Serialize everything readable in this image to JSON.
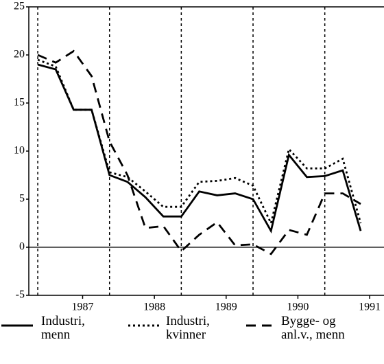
{
  "chart_data": {
    "type": "line",
    "x": [
      1986.875,
      1987.125,
      1987.375,
      1987.625,
      1987.875,
      1988.125,
      1988.375,
      1988.625,
      1988.875,
      1989.125,
      1989.375,
      1989.625,
      1989.875,
      1990.125,
      1990.375,
      1990.625,
      1990.875,
      1991.125,
      1991.375
    ],
    "series": [
      {
        "name": "Industri, menn",
        "color": "#000000",
        "dash": "solid",
        "values": [
          19,
          18.5,
          14.3,
          14.3,
          7.5,
          6.8,
          5.2,
          3.2,
          3.2,
          5.8,
          5.4,
          5.6,
          5.0,
          1.7,
          9.6,
          7.3,
          7.4,
          8.0,
          1.7
        ]
      },
      {
        "name": "Industri, kvinner",
        "color": "#000000",
        "dash": "dotted",
        "values": [
          19.5,
          18.8,
          14.3,
          14.3,
          7.8,
          7.3,
          5.8,
          4.2,
          4.2,
          6.8,
          6.9,
          7.2,
          6.4,
          2.5,
          10.2,
          8.2,
          8.2,
          9.2,
          2.5
        ]
      },
      {
        "name": "Bygge- og anl.v., menn",
        "color": "#000000",
        "dash": "dashed",
        "values": [
          20,
          19.2,
          20.4,
          17.8,
          11,
          7.5,
          2,
          2.2,
          -0.4,
          1.3,
          2.6,
          0.2,
          0.3,
          -0.7,
          1.8,
          1.3,
          5.6,
          5.6,
          4.5
        ]
      }
    ],
    "xlim": [
      1986.75,
      1991.7
    ],
    "xticks": [
      {
        "value": 1987.5,
        "label": "1987"
      },
      {
        "value": 1988.5,
        "label": "1988"
      },
      {
        "value": 1989.5,
        "label": "1989"
      },
      {
        "value": 1990.5,
        "label": "1990"
      },
      {
        "value": 1991.5,
        "label": "1991"
      }
    ],
    "vlines": [
      1986.875,
      1987.875,
      1988.875,
      1989.875,
      1990.875
    ],
    "ylim": [
      -5,
      25
    ],
    "yticks": [
      -5,
      0,
      5,
      10,
      15,
      20,
      25
    ],
    "legend": "bottom"
  }
}
